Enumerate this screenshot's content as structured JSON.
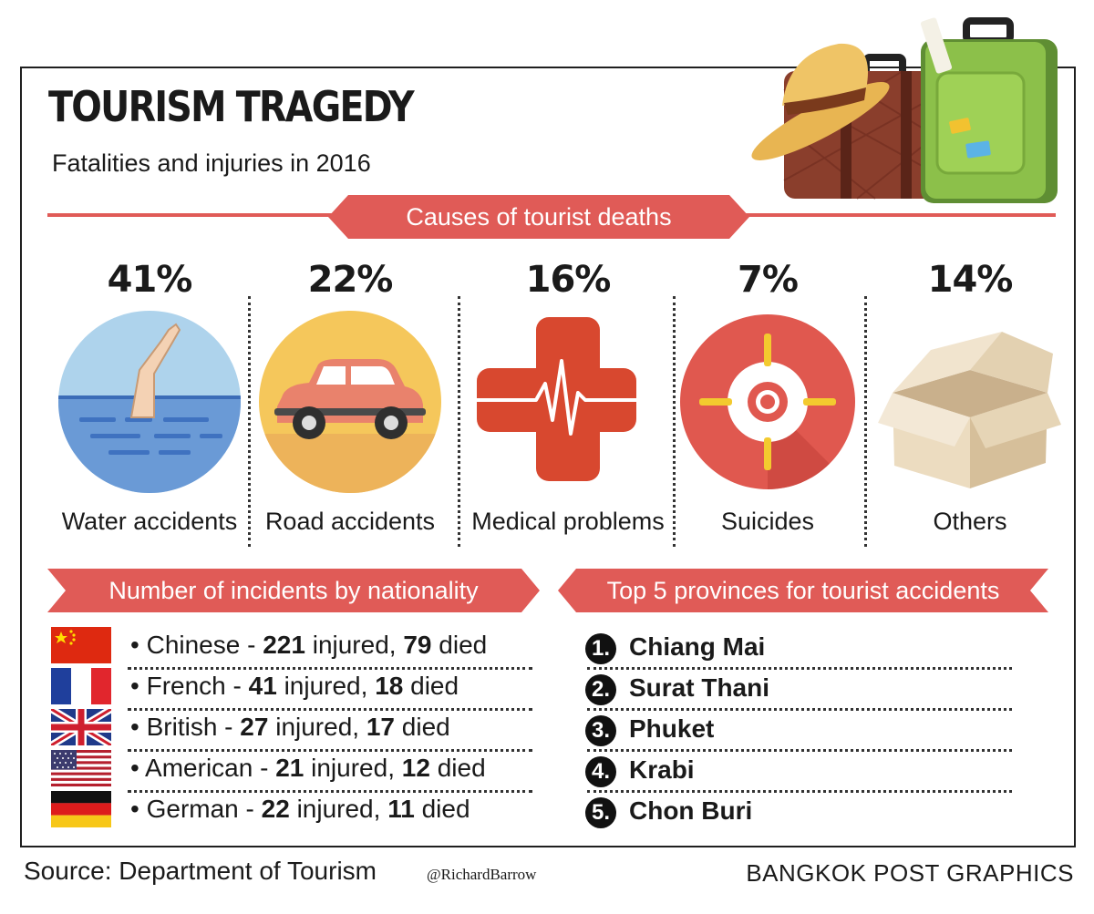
{
  "title": "TOURISM TRAGEDY",
  "subtitle": "Fatalities and injuries in 2016",
  "causes_heading": "Causes of tourist deaths",
  "causes": [
    {
      "percent": "41%",
      "label": "Water accidents",
      "icon": "drowning-hand-icon"
    },
    {
      "percent": "22%",
      "label": "Road accidents",
      "icon": "car-icon"
    },
    {
      "percent": "16%",
      "label": "Medical problems",
      "icon": "medical-cross-icon"
    },
    {
      "percent": "7%",
      "label": "Suicides",
      "icon": "target-icon"
    },
    {
      "percent": "14%",
      "label": "Others",
      "icon": "open-box-icon"
    }
  ],
  "nationality_heading": "Number of incidents by nationality",
  "nationalities": [
    {
      "name": "Chinese",
      "injured": "221",
      "died": "79",
      "flag": "china-flag-icon"
    },
    {
      "name": "French",
      "injured": "41",
      "died": "18",
      "flag": "france-flag-icon"
    },
    {
      "name": "British",
      "injured": "27",
      "died": "17",
      "flag": "uk-flag-icon"
    },
    {
      "name": "American",
      "injured": "21",
      "died": "12",
      "flag": "usa-flag-icon"
    },
    {
      "name": "German",
      "injured": "22",
      "died": "11",
      "flag": "germany-flag-icon"
    }
  ],
  "text": {
    "bullet": "•",
    "dash": "-",
    "injured_word": "injured,",
    "died_word": "died"
  },
  "provinces_heading": "Top 5 provinces for tourist accidents",
  "provinces": [
    {
      "rank": "1.",
      "name": "Chiang Mai"
    },
    {
      "rank": "2.",
      "name": "Surat Thani"
    },
    {
      "rank": "3.",
      "name": "Phuket"
    },
    {
      "rank": "4.",
      "name": "Krabi"
    },
    {
      "rank": "5.",
      "name": "Chon Buri"
    }
  ],
  "footer": {
    "source": "Source: Department of Tourism",
    "credit": "@RichardBarrow",
    "brand": "BANGKOK POST GRAPHICS"
  },
  "colors": {
    "accent": "#e05b57",
    "text": "#1a1a1a"
  }
}
